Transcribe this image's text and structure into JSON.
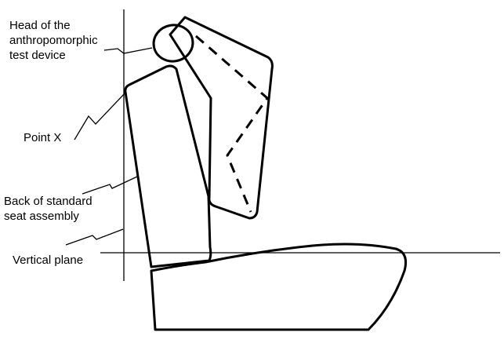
{
  "labels": {
    "head": [
      "Head of the",
      "anthropomorphic",
      "test device"
    ],
    "point_x": "Point X",
    "back": [
      "Back of standard",
      "seat assembly"
    ],
    "vertical_plane": "Vertical plane"
  }
}
